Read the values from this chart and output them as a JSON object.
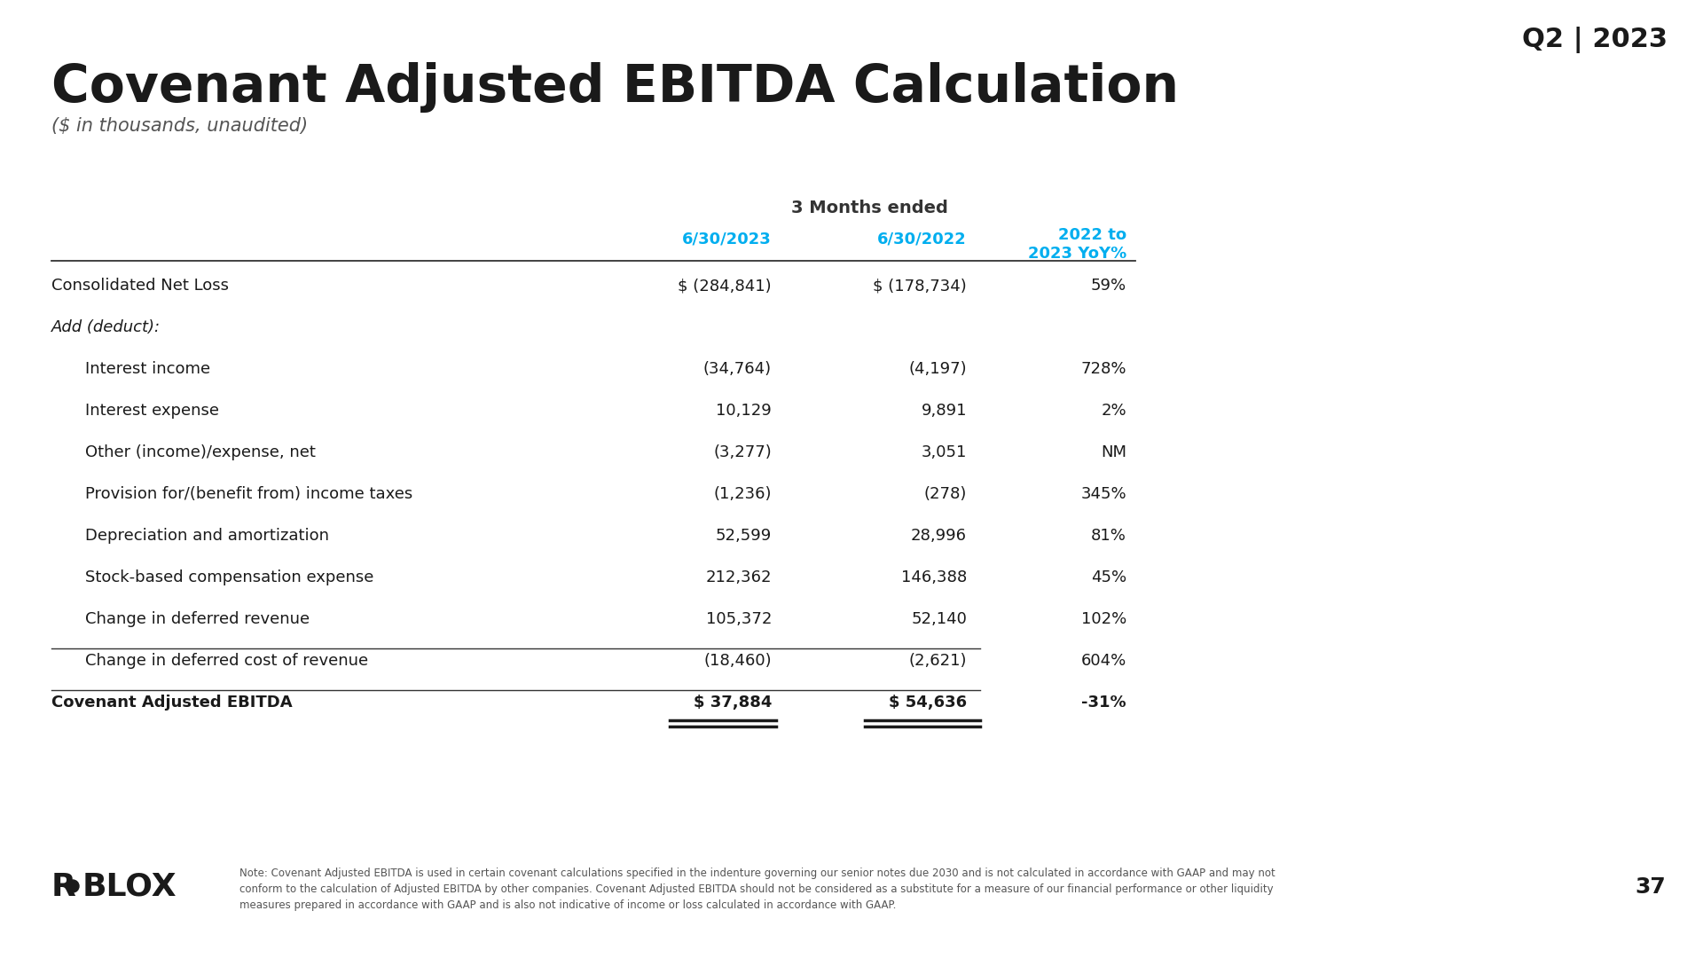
{
  "title": "Covenant Adjusted EBITDA Calculation",
  "subtitle": "($ in thousands, unaudited)",
  "quarter_label": "Q2 | 2023",
  "section_header": "3 Months ended",
  "col_headers": [
    "6/30/2023",
    "6/30/2022",
    "2022 to\n2023 YoY%"
  ],
  "rows": [
    {
      "label": "Consolidated Net Loss",
      "v1": "$ (284,841)",
      "v2": "$ (178,734)",
      "yoy": "59%",
      "indent": 0,
      "bold": false,
      "italic": false
    },
    {
      "label": "Add (deduct):",
      "v1": "",
      "v2": "",
      "yoy": "",
      "indent": 0,
      "bold": false,
      "italic": true
    },
    {
      "label": "Interest income",
      "v1": "(34,764)",
      "v2": "(4,197)",
      "yoy": "728%",
      "indent": 1,
      "bold": false,
      "italic": false
    },
    {
      "label": "Interest expense",
      "v1": "10,129",
      "v2": "9,891",
      "yoy": "2%",
      "indent": 1,
      "bold": false,
      "italic": false
    },
    {
      "label": "Other (income)/expense, net",
      "v1": "(3,277)",
      "v2": "3,051",
      "yoy": "NM",
      "indent": 1,
      "bold": false,
      "italic": false
    },
    {
      "label": "Provision for/(benefit from) income taxes",
      "v1": "(1,236)",
      "v2": "(278)",
      "yoy": "345%",
      "indent": 1,
      "bold": false,
      "italic": false
    },
    {
      "label": "Depreciation and amortization",
      "v1": "52,599",
      "v2": "28,996",
      "yoy": "81%",
      "indent": 1,
      "bold": false,
      "italic": false
    },
    {
      "label": "Stock-based compensation expense",
      "v1": "212,362",
      "v2": "146,388",
      "yoy": "45%",
      "indent": 1,
      "bold": false,
      "italic": false
    },
    {
      "label": "Change in deferred revenue",
      "v1": "105,372",
      "v2": "52,140",
      "yoy": "102%",
      "indent": 1,
      "bold": false,
      "italic": false
    },
    {
      "label": "Change in deferred cost of revenue",
      "v1": "(18,460)",
      "v2": "(2,621)",
      "yoy": "604%",
      "indent": 1,
      "bold": false,
      "italic": false
    },
    {
      "label": "Covenant Adjusted EBITDA",
      "v1": "$ 37,884",
      "v2": "$ 54,636",
      "yoy": "-31%",
      "indent": 0,
      "bold": true,
      "italic": false
    }
  ],
  "note_line1": "Note: Covenant Adjusted EBITDA is used in certain covenant calculations specified in the indenture governing our senior notes due 2030 and is not calculated in accordance with GAAP and may not",
  "note_line2": "conform to the calculation of Adjusted EBITDA by other companies. Covenant Adjusted EBITDA should not be considered as a substitute for a measure of our financial performance or other liquidity",
  "note_line3": "measures prepared in accordance with GAAP and is also not indicative of income or loss calculated in accordance with GAAP.",
  "page_number": "37",
  "cyan_color": "#00AEEF",
  "background_color": "#FFFFFF",
  "text_color": "#1a1a1a",
  "dark_gray": "#333333",
  "note_color": "#555555"
}
